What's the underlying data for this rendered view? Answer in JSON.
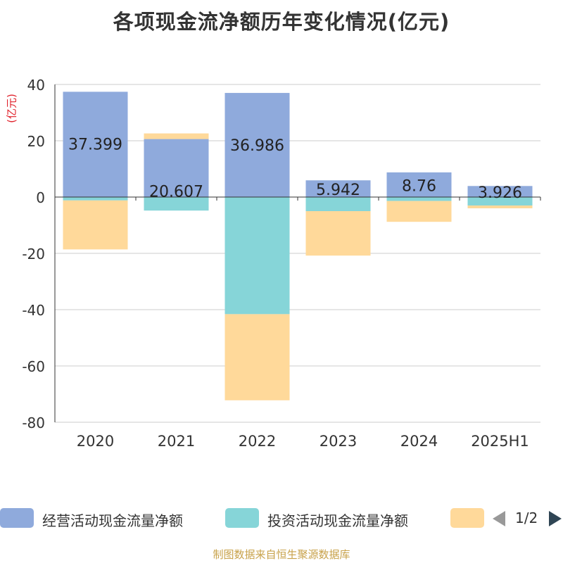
{
  "title": "各项现金流净额历年变化情况(亿元)",
  "unit_label": "(亿元)",
  "source": "制图数据来自恒生聚源数据库",
  "colors": {
    "operating": "#8faadc",
    "investing": "#86d5d8",
    "financing": "#ffd99a",
    "unit_text": "#e0202a",
    "source_text": "#c8a24a",
    "grid": "#cccccc",
    "axis": "#333333"
  },
  "legend": {
    "items": [
      {
        "label": "经营活动现金流量净额",
        "color": "#8faadc"
      },
      {
        "label": "投资活动现金流量净额",
        "color": "#86d5d8"
      },
      {
        "label": "",
        "color": "#ffd99a"
      }
    ],
    "page": "1/2",
    "prev_icon": "triangle-left-icon",
    "next_icon": "triangle-right-icon"
  },
  "chart_data": {
    "type": "bar",
    "stacked": true,
    "categories": [
      "2020",
      "2021",
      "2022",
      "2023",
      "2024",
      "2025H1"
    ],
    "ylim": [
      -80,
      40
    ],
    "yticks": [
      40,
      20,
      0,
      -20,
      -40,
      -60,
      -80
    ],
    "grid": true,
    "legend_position": "bottom",
    "series": [
      {
        "name": "经营活动现金流量净额",
        "color": "#8faadc",
        "values": [
          37.399,
          20.607,
          36.986,
          5.942,
          8.76,
          3.926
        ],
        "labels": [
          "37.399",
          "20.607",
          "36.986",
          "5.942",
          "8.76",
          "3.926"
        ]
      },
      {
        "name": "投资活动现金流量净额",
        "color": "#86d5d8",
        "values": [
          -1.2,
          -4.8,
          -41.6,
          -5.0,
          -1.4,
          -3.0
        ]
      },
      {
        "color": "#ffd99a",
        "values": [
          -17.4,
          2.0,
          -30.6,
          -15.8,
          -7.4,
          -1.0
        ]
      }
    ]
  }
}
